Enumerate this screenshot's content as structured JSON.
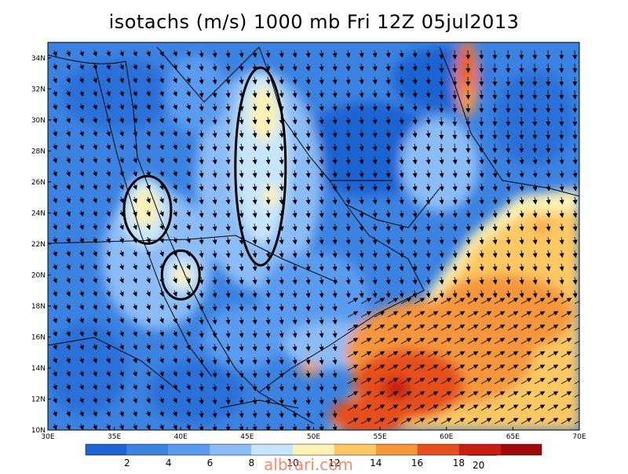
{
  "title": "isotachs (m/s) 1000 mb Fri 12Z 05jul2013",
  "lat_labels": [
    "10N",
    "12N",
    "14N",
    "16N",
    "18N",
    "20N",
    "22N",
    "24N",
    "26N",
    "28N",
    "30N",
    "32N",
    "34N"
  ],
  "lon_labels": [
    "30E",
    "35E",
    "40E",
    "45E",
    "50E",
    "55E",
    "60E",
    "65E",
    "70E"
  ],
  "domain": {
    "lon_min": 30,
    "lon_max": 70,
    "lat_min": 10,
    "lat_max": 35
  },
  "colorbar": {
    "labels": [
      "2",
      "4",
      "6",
      "8",
      "10",
      "12",
      "14",
      "16",
      "18"
    ],
    "colors": [
      "#1e64d2",
      "#3c82e1",
      "#5a9bef",
      "#8cbcf6",
      "#c8e6fa",
      "#fdf2b4",
      "#fcc864",
      "#f5963c",
      "#e6501e",
      "#c81e14",
      "#a00a0a"
    ]
  },
  "vector_reference": "20",
  "watermark": "albrari.com",
  "circled_regions": [
    {
      "lon": 37.5,
      "lat": 24.2
    },
    {
      "lon": 40.0,
      "lat": 20.0
    },
    {
      "lon": 46.0,
      "lat": 27.0
    }
  ]
}
